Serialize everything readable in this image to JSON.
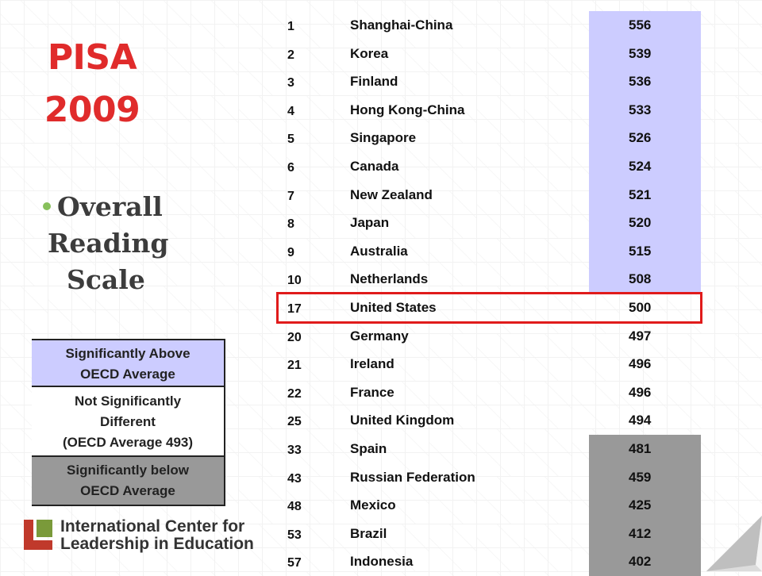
{
  "title": {
    "line1": "PISA",
    "line2": "2009"
  },
  "subtitle": {
    "line1": "Overall",
    "line2": "Reading",
    "line3": "Scale"
  },
  "legend": {
    "above": {
      "line1": "Significantly Above",
      "line2": "OECD Average"
    },
    "not_significant": {
      "line1": "Not Significantly",
      "line2": "Different",
      "line3": "(OECD Average 493)"
    },
    "below": {
      "line1": "Significantly below",
      "line2": "OECD Average"
    }
  },
  "logo": {
    "line1": "International Center for",
    "line2": "Leadership in Education"
  },
  "colors": {
    "above": "#ccccff",
    "below": "#999999",
    "title": "#e02b2b",
    "highlight": "#e01b1b"
  },
  "table": {
    "rows": [
      {
        "rank": "1",
        "country": "Shanghai-China",
        "score": "556",
        "group": "above"
      },
      {
        "rank": "2",
        "country": "Korea",
        "score": "539",
        "group": "above"
      },
      {
        "rank": "3",
        "country": "Finland",
        "score": "536",
        "group": "above"
      },
      {
        "rank": "4",
        "country": "Hong Kong-China",
        "score": "533",
        "group": "above"
      },
      {
        "rank": "5",
        "country": "Singapore",
        "score": "526",
        "group": "above"
      },
      {
        "rank": "6",
        "country": "Canada",
        "score": "524",
        "group": "above"
      },
      {
        "rank": "7",
        "country": "New Zealand",
        "score": "521",
        "group": "above"
      },
      {
        "rank": "8",
        "country": "Japan",
        "score": "520",
        "group": "above"
      },
      {
        "rank": "9",
        "country": "Australia",
        "score": "515",
        "group": "above"
      },
      {
        "rank": "10",
        "country": "Netherlands",
        "score": "508",
        "group": "above"
      },
      {
        "rank": "17",
        "country": "United States",
        "score": "500",
        "group": "not_significant",
        "highlight": true
      },
      {
        "rank": "20",
        "country": "Germany",
        "score": "497",
        "group": "not_significant"
      },
      {
        "rank": "21",
        "country": "Ireland",
        "score": "496",
        "group": "not_significant"
      },
      {
        "rank": "22",
        "country": "France",
        "score": "496",
        "group": "not_significant"
      },
      {
        "rank": "25",
        "country": "United Kingdom",
        "score": "494",
        "group": "not_significant"
      },
      {
        "rank": "33",
        "country": "Spain",
        "score": "481",
        "group": "below"
      },
      {
        "rank": "43",
        "country": "Russian Federation",
        "score": "459",
        "group": "below"
      },
      {
        "rank": "48",
        "country": "Mexico",
        "score": "425",
        "group": "below"
      },
      {
        "rank": "53",
        "country": "Brazil",
        "score": "412",
        "group": "below"
      },
      {
        "rank": "57",
        "country": "Indonesia",
        "score": "402",
        "group": "below"
      }
    ]
  }
}
